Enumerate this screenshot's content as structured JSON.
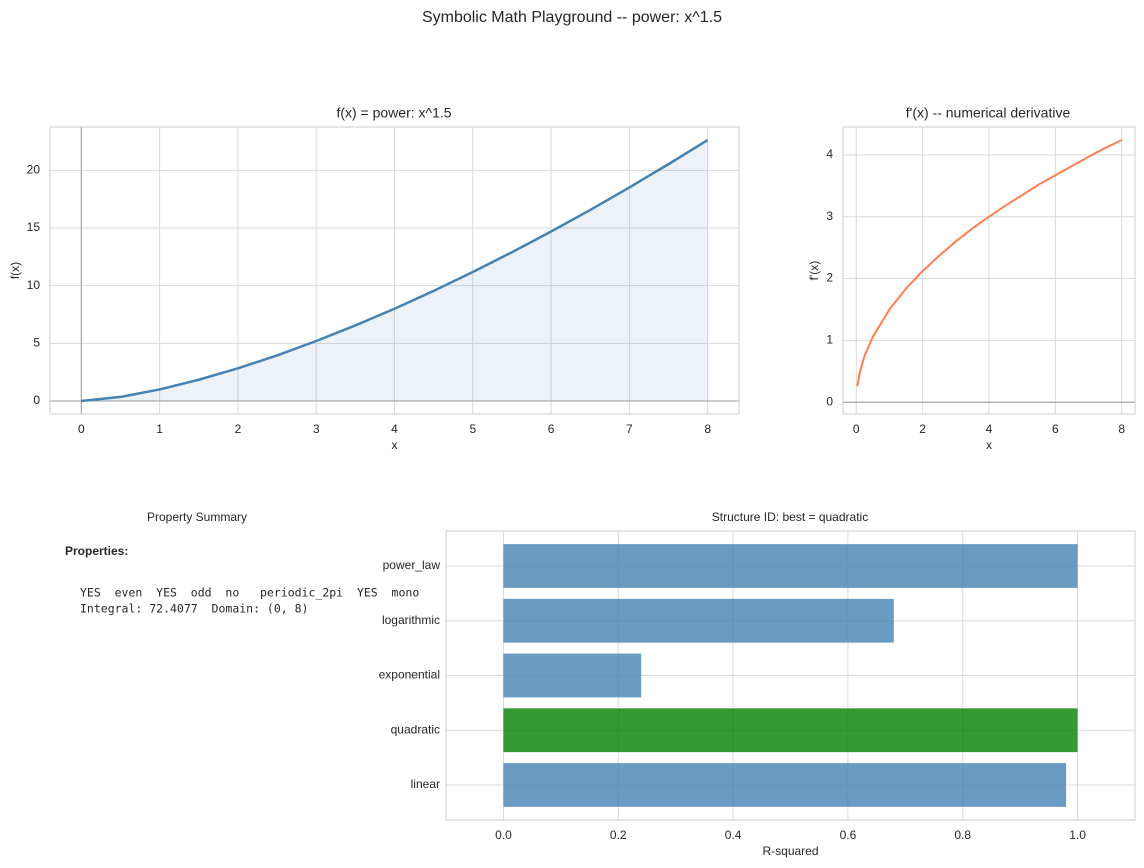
{
  "title": "Symbolic Math Playground -- power: x^1.5",
  "panel": {
    "title": "Property Summary",
    "heading": "Properties:",
    "lines": [
      "YES  even  YES  odd  no   periodic_2pi  YES  mono",
      "Integral: 72.4077  Domain: (0, 8)"
    ]
  },
  "chart_data": [
    {
      "type": "line",
      "title": "f(x) = power: x^1.5",
      "xlabel": "x",
      "ylabel": "f(x)",
      "x": [
        0,
        0.5,
        1,
        1.5,
        2,
        2.5,
        3,
        3.5,
        4,
        4.5,
        5,
        5.5,
        6,
        6.5,
        7,
        7.5,
        8
      ],
      "values": [
        0,
        0.35,
        1,
        1.84,
        2.83,
        3.95,
        5.2,
        6.55,
        8,
        9.55,
        11.18,
        12.9,
        14.7,
        16.57,
        18.52,
        20.54,
        22.63
      ],
      "color": "#4682b4",
      "fill": true,
      "grid": true,
      "xlim": [
        -0.4,
        8.4
      ],
      "ylim": [
        -1.13,
        23.76
      ],
      "xticks": [
        0,
        1,
        2,
        3,
        4,
        5,
        6,
        7,
        8
      ],
      "yticks": [
        0,
        5,
        10,
        15,
        20
      ],
      "hline": 0,
      "vline": 0
    },
    {
      "type": "line",
      "title": "f'(x) -- numerical derivative",
      "xlabel": "x",
      "ylabel": "f'(x)",
      "x": [
        0.03,
        0.1,
        0.25,
        0.5,
        1,
        1.5,
        2,
        2.5,
        3,
        3.5,
        4,
        4.5,
        5,
        5.5,
        6,
        6.5,
        7,
        7.5,
        8
      ],
      "values": [
        0.26,
        0.47,
        0.75,
        1.06,
        1.5,
        1.84,
        2.12,
        2.37,
        2.6,
        2.81,
        3,
        3.18,
        3.35,
        3.52,
        3.67,
        3.82,
        3.97,
        4.11,
        4.24
      ],
      "color": "#ff7f50",
      "fill": false,
      "grid": true,
      "xlim": [
        -0.4,
        8.4
      ],
      "ylim": [
        -0.19,
        4.45
      ],
      "xticks": [
        0,
        2,
        4,
        6,
        8
      ],
      "yticks": [
        0,
        1,
        2,
        3,
        4
      ],
      "hline": 0
    },
    {
      "type": "barh",
      "title": "Structure ID: best = quadratic",
      "xlabel": "R-squared",
      "categories": [
        "linear",
        "quadratic",
        "exponential",
        "logarithmic",
        "power_law"
      ],
      "values": [
        0.98,
        1,
        0.24,
        0.68,
        1
      ],
      "colors": [
        "#4682b4",
        "#008000",
        "#4682b4",
        "#4682b4",
        "#4682b4"
      ],
      "grid": true,
      "xlim": [
        -0.1,
        1.1
      ],
      "xticks": [
        {
          "value": 0,
          "label": "0.0"
        },
        0.2,
        0.4,
        0.6,
        0.8,
        {
          "value": 1,
          "label": "1.0"
        }
      ]
    }
  ]
}
